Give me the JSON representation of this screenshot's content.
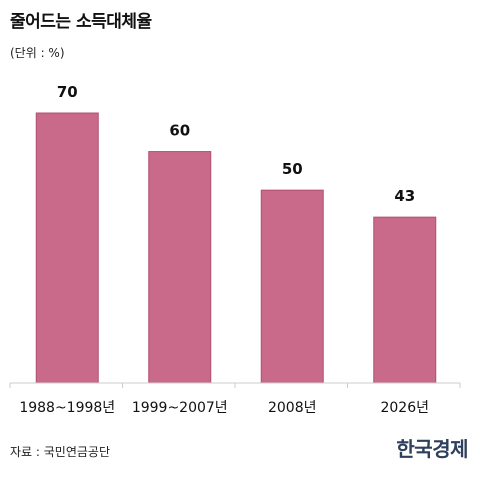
{
  "title": "줄어드는 소득대체율",
  "unit": "(단위 : %)",
  "source": "자료 : 국민연금공단",
  "brand": "한국경제",
  "colors": {
    "bar": "#c96a8b",
    "bar_stroke": "#b24f73",
    "axis": "#cccccc"
  },
  "chart_data": {
    "type": "bar",
    "title": "줄어드는 소득대체율",
    "xlabel": "",
    "ylabel": "",
    "categories": [
      "1988~1998년",
      "1999~2007년",
      "2008년",
      "2026년"
    ],
    "values": [
      70,
      60,
      50,
      43
    ],
    "ylim": [
      0,
      70
    ],
    "grid": false
  }
}
